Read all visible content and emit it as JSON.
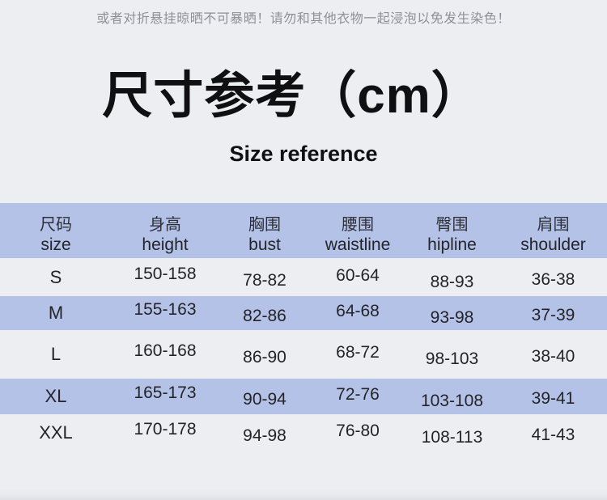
{
  "notice": "或者对折悬挂晾晒不可暴晒！请勿和其他衣物一起浸泡以免发生染色！",
  "title": "尺寸参考（cm）",
  "subtitle": "Size reference",
  "colors": {
    "page_bg": "#edeef2",
    "band": "#b5c2e8",
    "title_text": "#101012",
    "notice_text": "#8f9095",
    "table_text": "#242428"
  },
  "chart_data": {
    "type": "table",
    "title": "尺寸参考（cm）",
    "subtitle": "Size reference",
    "columns": [
      {
        "zh": "尺码",
        "en": "size"
      },
      {
        "zh": "身高",
        "en": "height"
      },
      {
        "zh": "胸围",
        "en": "bust"
      },
      {
        "zh": "腰围",
        "en": "waistline"
      },
      {
        "zh": "臀围",
        "en": "hipline"
      },
      {
        "zh": "肩围",
        "en": "shoulder"
      }
    ],
    "rows": [
      {
        "size": "S",
        "height": "150-158",
        "bust": "78-82",
        "waistline": "60-64",
        "hipline": "88-93",
        "shoulder": "36-38"
      },
      {
        "size": "M",
        "height": "155-163",
        "bust": "82-86",
        "waistline": "64-68",
        "hipline": "93-98",
        "shoulder": "37-39"
      },
      {
        "size": "L",
        "height": "160-168",
        "bust": "86-90",
        "waistline": "68-72",
        "hipline": "98-103",
        "shoulder": "38-40"
      },
      {
        "size": "XL",
        "height": "165-173",
        "bust": "90-94",
        "waistline": "72-76",
        "hipline": "103-108",
        "shoulder": "39-41"
      },
      {
        "size": "XXL",
        "height": "170-178",
        "bust": "94-98",
        "waistline": "76-80",
        "hipline": "108-113",
        "shoulder": "41-43"
      }
    ]
  }
}
